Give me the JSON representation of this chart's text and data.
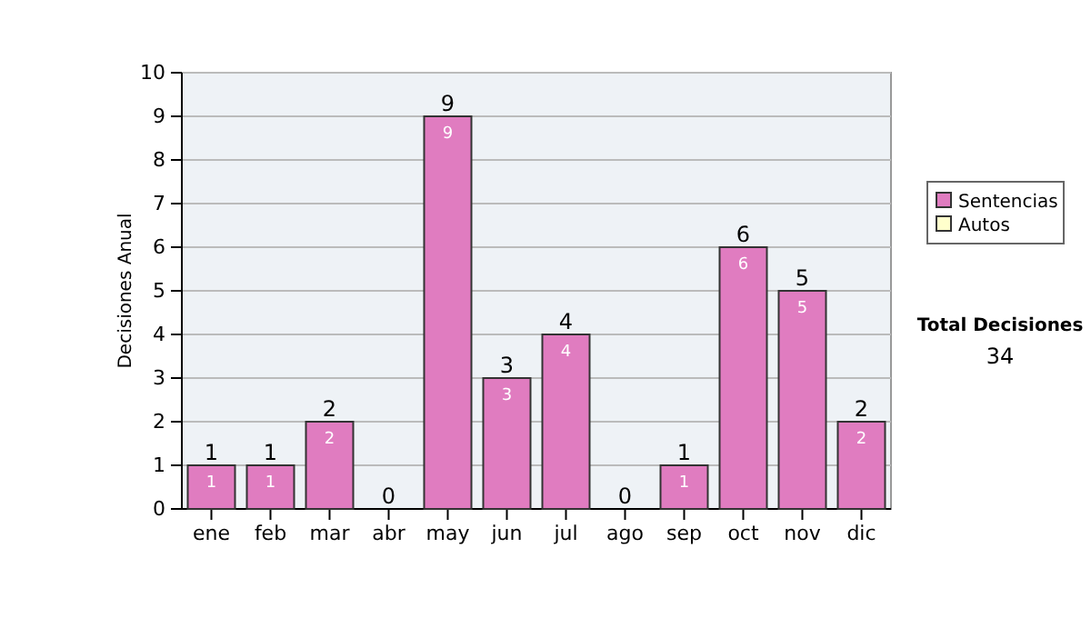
{
  "chart_data": {
    "type": "bar",
    "ylabel": "Decisiones Anual",
    "categories": [
      "ene",
      "feb",
      "mar",
      "abr",
      "may",
      "jun",
      "jul",
      "ago",
      "sep",
      "oct",
      "nov",
      "dic"
    ],
    "series": [
      {
        "name": "Sentencias",
        "color": "#e07cc0",
        "values": [
          1,
          1,
          2,
          0,
          9,
          3,
          4,
          0,
          1,
          6,
          5,
          2
        ],
        "value_labels": [
          "1",
          "1",
          "2",
          null,
          "9",
          "3",
          "4",
          null,
          "1",
          "6",
          "5",
          "2"
        ]
      },
      {
        "name": "Autos",
        "color": "#ffffcc",
        "values": [
          0,
          0,
          0,
          0,
          0,
          0,
          0,
          0,
          0,
          0,
          0,
          0
        ]
      }
    ],
    "stacked": true,
    "totals": [
      "1",
      "1",
      "2",
      "0",
      "9",
      "3",
      "4",
      "0",
      "1",
      "6",
      "5",
      "2"
    ],
    "ylim": [
      0,
      10
    ],
    "yticks": [
      0,
      1,
      2,
      3,
      4,
      5,
      6,
      7,
      8,
      9,
      10
    ],
    "grid": "y",
    "legend": "right",
    "annotations": [
      "Total Decisiones",
      "34"
    ]
  }
}
